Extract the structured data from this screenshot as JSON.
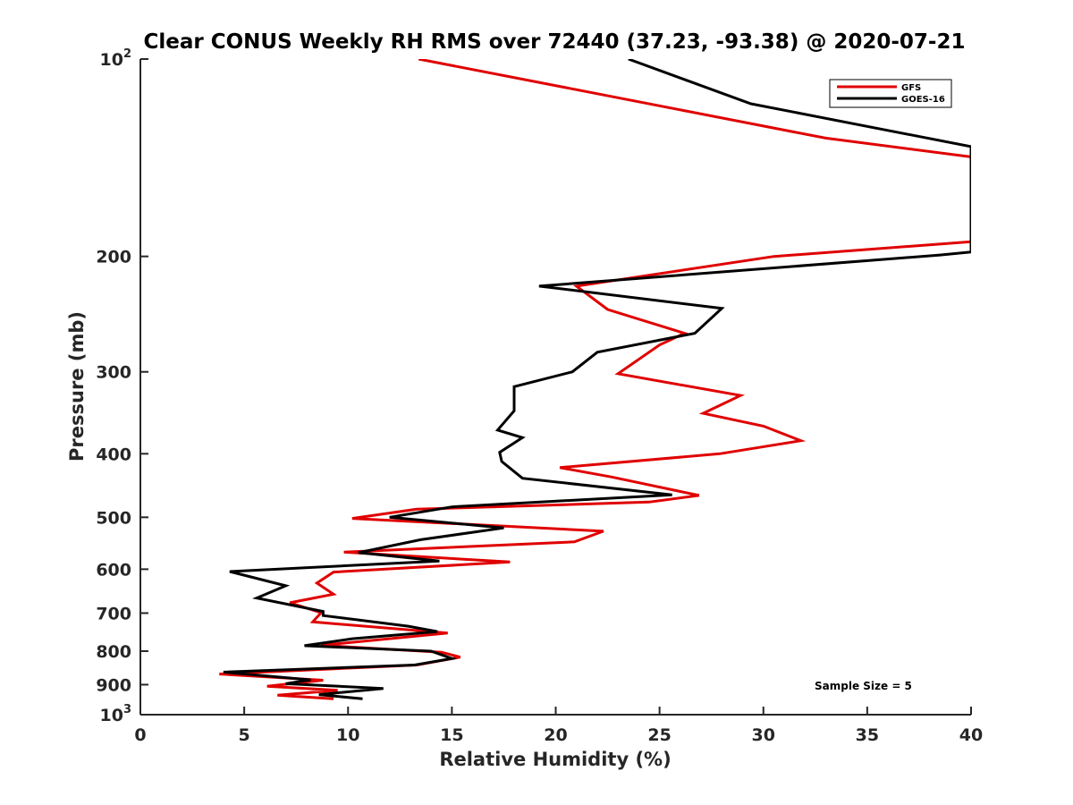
{
  "chart_data": {
    "type": "line",
    "title": "Clear CONUS Weekly RH RMS over 72440 (37.23, -93.38) @ 2020-07-21",
    "xlabel": "Relative Humidity (%)",
    "ylabel": "Pressure (mb)",
    "xlim": [
      0,
      40
    ],
    "ylim": [
      1000,
      100
    ],
    "yscale": "log",
    "y_reversed": true,
    "grid": false,
    "legend_placement": "top-right",
    "x_ticks": [
      0,
      5,
      10,
      15,
      20,
      25,
      30,
      35,
      40
    ],
    "x_tick_labels": [
      "0",
      "5",
      "10",
      "15",
      "20",
      "25",
      "30",
      "35",
      "40"
    ],
    "y_ticks": [
      {
        "value": 100,
        "base": "10",
        "exp": "2"
      },
      {
        "value": 200,
        "label": "200"
      },
      {
        "value": 300,
        "label": "300"
      },
      {
        "value": 400,
        "label": "400"
      },
      {
        "value": 500,
        "label": "500"
      },
      {
        "value": 600,
        "label": "600"
      },
      {
        "value": 700,
        "label": "700"
      },
      {
        "value": 800,
        "label": "800"
      },
      {
        "value": 900,
        "label": "900"
      },
      {
        "value": 1000,
        "base": "10",
        "exp": "3"
      }
    ],
    "annotation": "Sample Size = 5",
    "series": [
      {
        "name": "GFS",
        "color": "#e00000",
        "points": [
          [
            13.4,
            100
          ],
          [
            33.0,
            132
          ],
          [
            40.0,
            141
          ],
          [
            40.0,
            190
          ],
          [
            30.5,
            200
          ],
          [
            21.0,
            222
          ],
          [
            22.5,
            241
          ],
          [
            26.2,
            262
          ],
          [
            25.0,
            273
          ],
          [
            23.0,
            302
          ],
          [
            28.9,
            326
          ],
          [
            27.1,
            347
          ],
          [
            30.0,
            363
          ],
          [
            31.8,
            382
          ],
          [
            27.9,
            400
          ],
          [
            20.2,
            420
          ],
          [
            22.7,
            434
          ],
          [
            26.9,
            463
          ],
          [
            24.5,
            474
          ],
          [
            13.3,
            486
          ],
          [
            10.2,
            502
          ],
          [
            22.3,
            525
          ],
          [
            20.9,
            545
          ],
          [
            9.8,
            565
          ],
          [
            17.8,
            585
          ],
          [
            9.3,
            606
          ],
          [
            8.5,
            630
          ],
          [
            9.3,
            655
          ],
          [
            7.2,
            675
          ],
          [
            8.7,
            699
          ],
          [
            8.3,
            722
          ],
          [
            14.8,
            751
          ],
          [
            8.7,
            784
          ],
          [
            14.5,
            803
          ],
          [
            15.4,
            817
          ],
          [
            13.3,
            840
          ],
          [
            3.8,
            867
          ],
          [
            8.8,
            886
          ],
          [
            6.1,
            905
          ],
          [
            9.5,
            918
          ],
          [
            6.6,
            934
          ],
          [
            9.3,
            946
          ]
        ]
      },
      {
        "name": "GOES-16",
        "color": "#000000",
        "points": [
          [
            23.5,
            100
          ],
          [
            29.4,
            117
          ],
          [
            40.0,
            136
          ],
          [
            40.0,
            197
          ],
          [
            38.5,
            199
          ],
          [
            19.2,
            222
          ],
          [
            28.0,
            240
          ],
          [
            26.7,
            262
          ],
          [
            22.0,
            280
          ],
          [
            20.8,
            300
          ],
          [
            18.0,
            316
          ],
          [
            18.0,
            344
          ],
          [
            17.2,
            368
          ],
          [
            18.4,
            378
          ],
          [
            17.3,
            398
          ],
          [
            17.4,
            411
          ],
          [
            18.4,
            436
          ],
          [
            25.6,
            462
          ],
          [
            15.0,
            482
          ],
          [
            12.0,
            500
          ],
          [
            17.5,
            519
          ],
          [
            13.5,
            541
          ],
          [
            10.5,
            566
          ],
          [
            14.4,
            583
          ],
          [
            4.3,
            605
          ],
          [
            7.0,
            636
          ],
          [
            5.6,
            664
          ],
          [
            8.8,
            696
          ],
          [
            8.8,
            706
          ],
          [
            12.9,
            733
          ],
          [
            14.3,
            747
          ],
          [
            10.2,
            766
          ],
          [
            7.9,
            785
          ],
          [
            14.0,
            800
          ],
          [
            15.0,
            821
          ],
          [
            13.2,
            840
          ],
          [
            4.0,
            861
          ],
          [
            8.2,
            885
          ],
          [
            7.0,
            897
          ],
          [
            11.7,
            912
          ],
          [
            8.6,
            932
          ],
          [
            10.7,
            946
          ]
        ]
      }
    ]
  }
}
